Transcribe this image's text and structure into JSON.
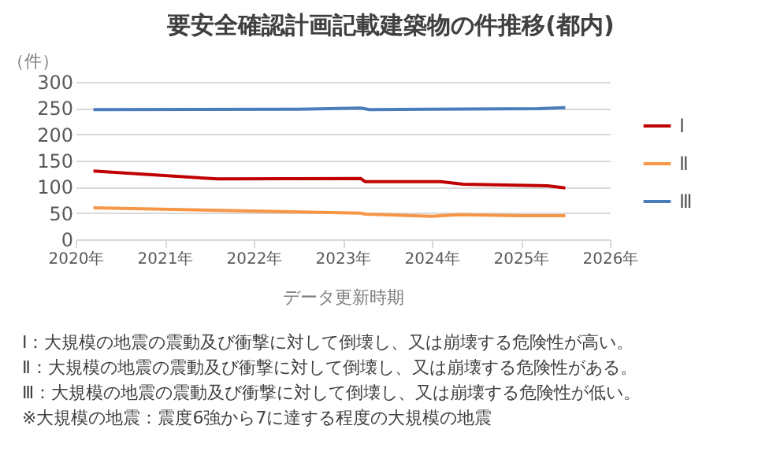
{
  "chart_data": {
    "type": "line",
    "title": "要安全確認計画記載建築物の件推移(都内)",
    "xlabel": "データ更新時期",
    "ylabel": "（件）",
    "xlim": [
      2020,
      2026
    ],
    "xticks": [
      {
        "value": 2020,
        "label": "2020年"
      },
      {
        "value": 2021,
        "label": "2021年"
      },
      {
        "value": 2022,
        "label": "2022年"
      },
      {
        "value": 2023,
        "label": "2023年"
      },
      {
        "value": 2024,
        "label": "2024年"
      },
      {
        "value": 2025,
        "label": "2025年"
      },
      {
        "value": 2026,
        "label": "2026年"
      }
    ],
    "ylim": [
      0,
      300
    ],
    "yticks": [
      0,
      50,
      100,
      150,
      200,
      250,
      300
    ],
    "grid": "y",
    "legend": "right",
    "marker": "none",
    "line_style": "solid",
    "series": [
      {
        "name": "Ⅰ",
        "color": "#c00000",
        "x": [
          2020.2,
          2021.6,
          2023.2,
          2023.25,
          2024.1,
          2024.35,
          2025.3,
          2025.5
        ],
        "values": [
          130,
          115,
          116,
          110,
          110,
          105,
          102,
          98
        ]
      },
      {
        "name": "Ⅱ",
        "color": "#f79646",
        "x": [
          2020.2,
          2023.2,
          2023.25,
          2024.0,
          2024.3,
          2025.0,
          2025.5
        ],
        "values": [
          60,
          50,
          48,
          44,
          47,
          45,
          45
        ]
      },
      {
        "name": "Ⅲ",
        "color": "#4a7ebb",
        "x": [
          2020.2,
          2022.5,
          2023.2,
          2023.3,
          2024.0,
          2025.2,
          2025.5
        ],
        "values": [
          247,
          248,
          250,
          247,
          248,
          249,
          251
        ]
      }
    ],
    "annotations": [
      "Ⅰ：大規模の地震の震動及び衝撃に対して倒壊し、又は崩壊する危険性が高い。",
      "Ⅱ：大規模の地震の震動及び衝撃に対して倒壊し、又は崩壊する危険性がある。",
      "Ⅲ：大規模の地震の震動及び衝撃に対して倒壊し、又は崩壊する危険性が低い。",
      "※大規模の地震：震度6強から7に達する程度の大規模の地震"
    ]
  }
}
